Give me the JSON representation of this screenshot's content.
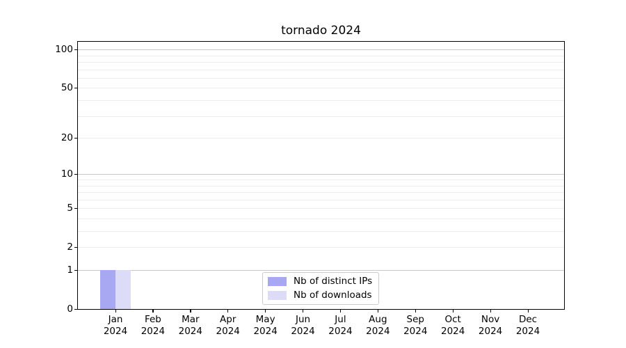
{
  "chart_data": {
    "type": "bar",
    "title": "tornado 2024",
    "categories": [
      "Jan",
      "Feb",
      "Mar",
      "Apr",
      "May",
      "Jun",
      "Jul",
      "Aug",
      "Sep",
      "Oct",
      "Nov",
      "Dec"
    ],
    "category_year": "2024",
    "series": [
      {
        "name": "Nb of distinct IPs",
        "color": "#a8a8f2",
        "values": [
          1,
          0,
          0,
          0,
          0,
          0,
          0,
          0,
          0,
          0,
          0,
          0
        ]
      },
      {
        "name": "Nb of downloads",
        "color": "#dcdcf8",
        "values": [
          1,
          0,
          0,
          0,
          0,
          0,
          0,
          0,
          0,
          0,
          0,
          0
        ]
      }
    ],
    "xlabel": "",
    "ylabel": "",
    "yscale": "log1p",
    "ylim": [
      0,
      115
    ],
    "yticks_labeled": [
      0,
      1,
      2,
      5,
      10,
      20,
      50,
      100
    ],
    "gridlines_major": [
      1,
      10,
      100
    ],
    "gridlines_minor": [
      2,
      3,
      4,
      5,
      6,
      7,
      8,
      9,
      20,
      30,
      40,
      50,
      60,
      70,
      80,
      90
    ],
    "grid": true,
    "legend_position": "lower center"
  }
}
